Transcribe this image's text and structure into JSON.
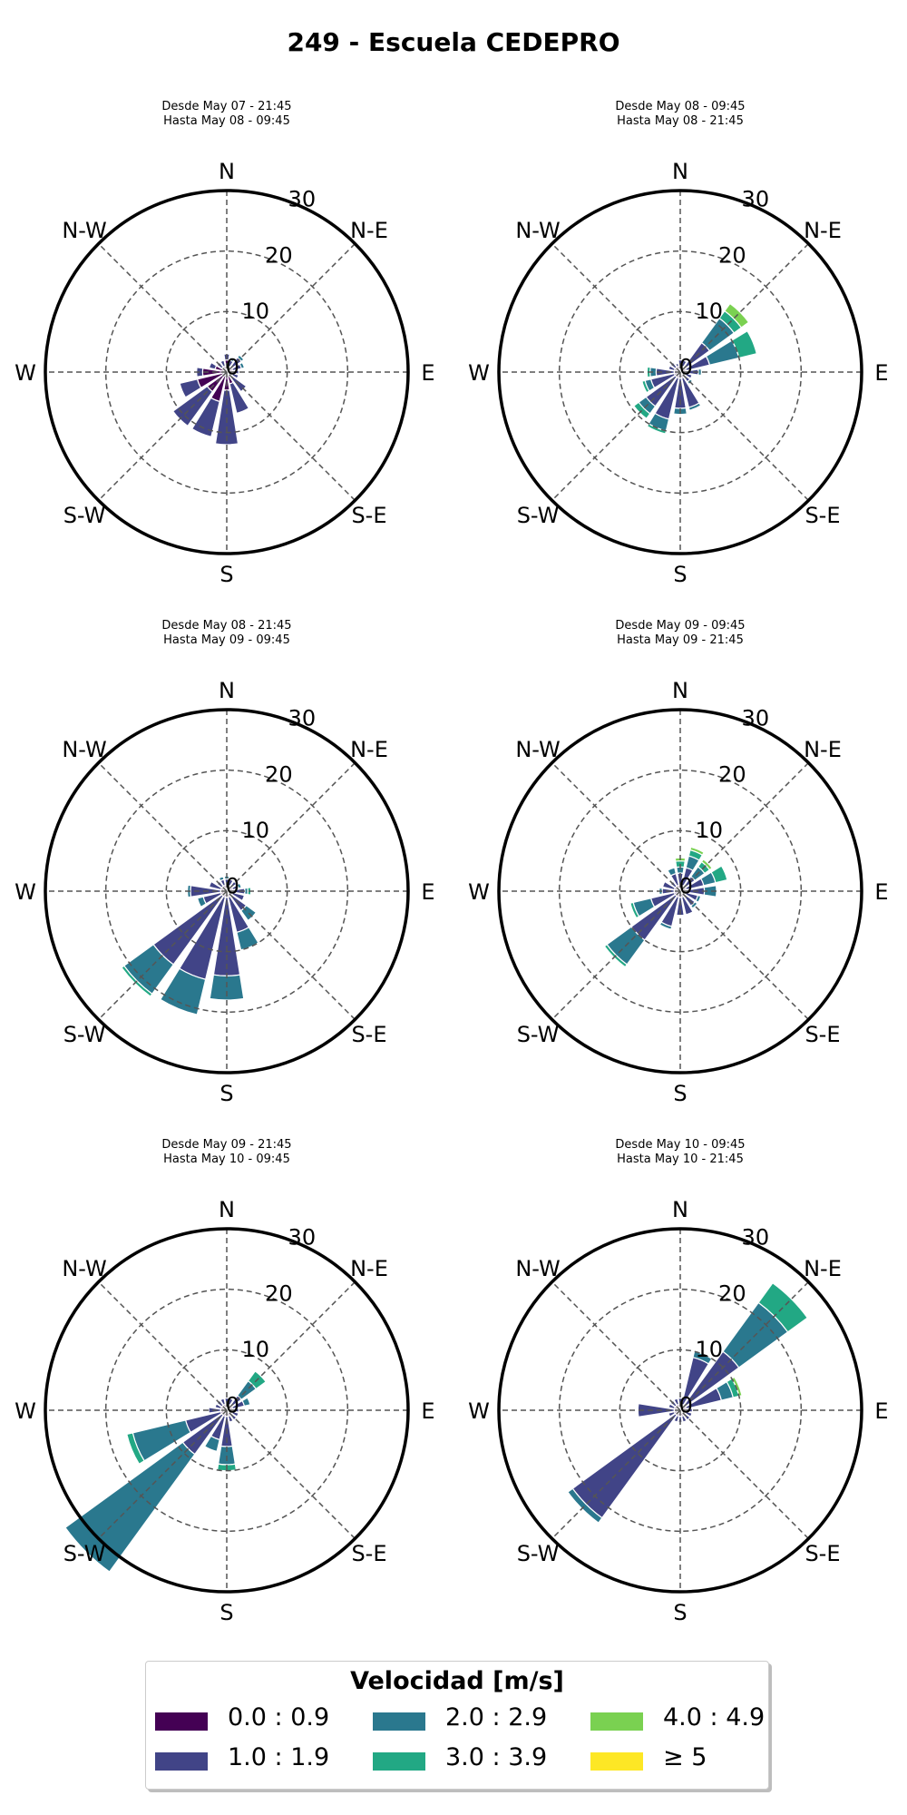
{
  "title": "249 - Escuela CEDEPRO",
  "directions": [
    "N",
    "N-E",
    "E",
    "S-E",
    "S",
    "S-W",
    "W",
    "N-W"
  ],
  "legend": {
    "title": "Velocidad [m/s]",
    "items": [
      {
        "label": "0.0 : 0.9",
        "color": "#440154"
      },
      {
        "label": "2.0 : 2.9",
        "color": "#2a788e"
      },
      {
        "label": "4.0 : 4.9",
        "color": "#7ad151"
      },
      {
        "label": "1.0 : 1.9",
        "color": "#414487"
      },
      {
        "label": "3.0 : 3.9",
        "color": "#22a884"
      },
      {
        "label": "≥ 5",
        "color": "#fde725"
      }
    ]
  },
  "chart_data": [
    {
      "type": "windrose",
      "subtitle_line1": "Desde May 07 - 21:45",
      "subtitle_line2": "Hasta May 08 - 09:45",
      "rmax": 30,
      "rticks": [
        "0",
        "10",
        "20",
        "30"
      ],
      "bins": [
        "0.0 : 0.9",
        "1.0 : 1.9",
        "2.0 : 2.9",
        "3.0 : 3.9",
        "4.0 : 4.9",
        "≥ 5"
      ],
      "sectors": [
        {
          "dir": 0,
          "values": [
            2,
            1,
            0,
            0,
            0,
            0
          ]
        },
        {
          "dir": 22.5,
          "values": [
            1,
            1,
            0.5,
            0,
            0,
            0
          ]
        },
        {
          "dir": 45,
          "values": [
            1,
            2,
            0.5,
            0,
            0,
            0
          ]
        },
        {
          "dir": 67.5,
          "values": [
            1,
            1.5,
            0.5,
            0,
            0,
            0
          ]
        },
        {
          "dir": 90,
          "values": [
            1,
            1,
            0,
            0,
            0,
            0
          ]
        },
        {
          "dir": 112.5,
          "values": [
            1,
            1,
            0,
            0,
            0,
            0
          ]
        },
        {
          "dir": 135,
          "values": [
            1,
            3,
            0,
            0,
            0,
            0
          ]
        },
        {
          "dir": 157.5,
          "values": [
            2,
            5,
            0,
            0,
            0,
            0
          ]
        },
        {
          "dir": 180,
          "values": [
            3,
            9,
            0,
            0,
            0,
            0
          ]
        },
        {
          "dir": 202.5,
          "values": [
            5,
            6,
            0,
            0,
            0,
            0
          ]
        },
        {
          "dir": 225,
          "values": [
            4,
            7,
            0,
            0,
            0,
            0
          ]
        },
        {
          "dir": 247.5,
          "values": [
            5,
            3,
            0,
            0,
            0,
            0
          ]
        },
        {
          "dir": 270,
          "values": [
            4,
            1,
            0,
            0,
            0,
            0
          ]
        },
        {
          "dir": 292.5,
          "values": [
            2,
            1,
            0,
            0,
            0,
            0
          ]
        },
        {
          "dir": 315,
          "values": [
            1,
            1,
            0,
            0,
            0,
            0
          ]
        },
        {
          "dir": 337.5,
          "values": [
            1,
            1,
            0,
            0,
            0,
            0
          ]
        }
      ]
    },
    {
      "type": "windrose",
      "subtitle_line1": "Desde May 08 - 09:45",
      "subtitle_line2": "Hasta May 08 - 21:45",
      "rmax": 30,
      "rticks": [
        "0",
        "10",
        "20",
        "30"
      ],
      "bins": [
        "0.0 : 0.9",
        "1.0 : 1.9",
        "2.0 : 2.9",
        "3.0 : 3.9",
        "4.0 : 4.9",
        "≥ 5"
      ],
      "sectors": [
        {
          "dir": 0,
          "values": [
            1,
            1,
            0,
            0,
            0,
            0
          ]
        },
        {
          "dir": 22.5,
          "values": [
            1,
            1,
            0,
            0,
            0,
            0
          ]
        },
        {
          "dir": 45,
          "values": [
            1,
            5,
            5,
            1.5,
            1.5,
            0
          ]
        },
        {
          "dir": 67.5,
          "values": [
            1,
            4,
            5,
            3,
            0,
            0
          ]
        },
        {
          "dir": 90,
          "values": [
            1,
            2,
            0.5,
            0,
            0,
            0
          ]
        },
        {
          "dir": 112.5,
          "values": [
            1,
            1,
            0,
            0,
            0,
            0
          ]
        },
        {
          "dir": 135,
          "values": [
            1,
            1,
            0.5,
            0,
            0,
            0
          ]
        },
        {
          "dir": 157.5,
          "values": [
            1,
            5,
            0.5,
            0,
            0,
            0
          ]
        },
        {
          "dir": 180,
          "values": [
            1,
            5,
            1,
            0,
            0,
            0
          ]
        },
        {
          "dir": 202.5,
          "values": [
            1,
            7,
            2,
            0.5,
            0,
            0
          ]
        },
        {
          "dir": 225,
          "values": [
            1,
            6,
            1.5,
            1,
            0,
            0
          ]
        },
        {
          "dir": 247.5,
          "values": [
            1,
            4,
            1,
            0.5,
            0,
            0
          ]
        },
        {
          "dir": 270,
          "values": [
            1,
            3,
            1,
            0.5,
            0,
            0
          ]
        },
        {
          "dir": 292.5,
          "values": [
            1,
            1,
            0,
            0,
            0,
            0
          ]
        },
        {
          "dir": 315,
          "values": [
            1,
            1,
            0,
            0,
            0,
            0
          ]
        },
        {
          "dir": 337.5,
          "values": [
            1,
            0.5,
            0,
            0,
            0,
            0
          ]
        }
      ]
    },
    {
      "type": "windrose",
      "subtitle_line1": "Desde May 08 - 21:45",
      "subtitle_line2": "Hasta May 09 - 09:45",
      "rmax": 30,
      "rticks": [
        "0",
        "10",
        "20",
        "30"
      ],
      "bins": [
        "0.0 : 0.9",
        "1.0 : 1.9",
        "2.0 : 2.9",
        "3.0 : 3.9",
        "4.0 : 4.9",
        "≥ 5"
      ],
      "sectors": [
        {
          "dir": 0,
          "values": [
            1,
            1,
            0.5,
            0,
            0,
            0
          ]
        },
        {
          "dir": 22.5,
          "values": [
            1,
            1,
            0,
            0,
            0,
            0
          ]
        },
        {
          "dir": 45,
          "values": [
            1,
            1,
            0,
            0,
            0,
            0
          ]
        },
        {
          "dir": 67.5,
          "values": [
            1,
            1,
            0.5,
            0,
            0,
            0
          ]
        },
        {
          "dir": 90,
          "values": [
            1,
            2,
            0.5,
            0.5,
            0,
            0
          ]
        },
        {
          "dir": 112.5,
          "values": [
            1,
            2,
            0,
            0,
            0,
            0
          ]
        },
        {
          "dir": 135,
          "values": [
            1,
            3,
            2,
            0,
            0,
            0
          ]
        },
        {
          "dir": 157.5,
          "values": [
            1,
            6,
            3,
            0,
            0,
            0
          ]
        },
        {
          "dir": 180,
          "values": [
            1,
            13,
            4,
            0,
            0,
            0
          ]
        },
        {
          "dir": 202.5,
          "values": [
            1,
            14,
            6,
            0,
            0,
            0
          ]
        },
        {
          "dir": 225,
          "values": [
            1,
            14,
            6,
            0.5,
            0,
            0
          ]
        },
        {
          "dir": 247.5,
          "values": [
            1,
            3,
            1,
            0,
            0,
            0
          ]
        },
        {
          "dir": 270,
          "values": [
            1,
            5,
            0.5,
            0,
            0,
            0
          ]
        },
        {
          "dir": 292.5,
          "values": [
            1,
            2,
            0,
            0,
            0,
            0
          ]
        },
        {
          "dir": 315,
          "values": [
            1,
            1,
            0,
            0,
            0,
            0
          ]
        },
        {
          "dir": 337.5,
          "values": [
            1,
            1,
            0.5,
            0,
            0,
            0
          ]
        }
      ]
    },
    {
      "type": "windrose",
      "subtitle_line1": "Desde May 09 - 09:45",
      "subtitle_line2": "Hasta May 09 - 21:45",
      "rmax": 30,
      "rticks": [
        "0",
        "10",
        "20",
        "30"
      ],
      "bins": [
        "0.0 : 0.9",
        "1.0 : 1.9",
        "2.0 : 2.9",
        "3.0 : 3.9",
        "4.0 : 4.9",
        "≥ 5"
      ],
      "sectors": [
        {
          "dir": 0,
          "values": [
            1,
            2,
            1,
            1,
            0.5,
            0
          ]
        },
        {
          "dir": 22.5,
          "values": [
            1,
            3,
            2,
            1,
            0.5,
            0
          ]
        },
        {
          "dir": 45,
          "values": [
            1,
            2,
            2,
            1,
            0.5,
            0
          ]
        },
        {
          "dir": 67.5,
          "values": [
            1,
            3,
            2,
            2,
            0,
            0
          ]
        },
        {
          "dir": 90,
          "values": [
            1,
            3,
            2,
            0,
            0,
            0
          ]
        },
        {
          "dir": 112.5,
          "values": [
            1,
            2,
            0.5,
            0,
            0,
            0
          ]
        },
        {
          "dir": 135,
          "values": [
            1,
            2,
            0.5,
            0,
            0,
            0
          ]
        },
        {
          "dir": 157.5,
          "values": [
            1,
            3,
            0,
            0,
            0,
            0
          ]
        },
        {
          "dir": 180,
          "values": [
            1,
            3,
            0,
            0,
            0,
            0
          ]
        },
        {
          "dir": 202.5,
          "values": [
            1,
            5,
            0.5,
            0,
            0,
            0
          ]
        },
        {
          "dir": 225,
          "values": [
            1,
            9,
            5,
            0.5,
            0,
            0
          ]
        },
        {
          "dir": 247.5,
          "values": [
            1,
            4,
            3,
            0.5,
            0,
            0
          ]
        },
        {
          "dir": 270,
          "values": [
            1,
            2,
            0.5,
            0,
            0,
            0
          ]
        },
        {
          "dir": 292.5,
          "values": [
            1,
            2,
            0,
            0,
            0,
            0
          ]
        },
        {
          "dir": 315,
          "values": [
            1,
            1,
            0,
            0,
            0,
            0
          ]
        },
        {
          "dir": 337.5,
          "values": [
            1,
            2,
            1,
            0,
            0,
            0
          ]
        }
      ]
    },
    {
      "type": "windrose",
      "subtitle_line1": "Desde May 09 - 21:45",
      "subtitle_line2": "Hasta May 10 - 09:45",
      "rmax": 30,
      "rticks": [
        "0",
        "10",
        "20",
        "30"
      ],
      "bins": [
        "0.0 : 0.9",
        "1.0 : 1.9",
        "2.0 : 2.9",
        "3.0 : 3.9",
        "4.0 : 4.9",
        "≥ 5"
      ],
      "sectors": [
        {
          "dir": 0,
          "values": [
            1,
            1,
            0,
            0,
            0,
            0
          ]
        },
        {
          "dir": 22.5,
          "values": [
            1,
            1,
            0,
            0,
            0,
            0
          ]
        },
        {
          "dir": 45,
          "values": [
            1,
            2,
            3,
            2,
            0,
            0
          ]
        },
        {
          "dir": 67.5,
          "values": [
            1,
            2,
            1,
            0,
            0,
            0
          ]
        },
        {
          "dir": 90,
          "values": [
            1,
            1,
            0,
            0,
            0,
            0
          ]
        },
        {
          "dir": 112.5,
          "values": [
            1,
            1,
            0,
            0,
            0,
            0
          ]
        },
        {
          "dir": 135,
          "values": [
            1,
            1,
            0,
            0,
            0,
            0
          ]
        },
        {
          "dir": 157.5,
          "values": [
            1,
            1,
            0,
            0,
            0,
            0
          ]
        },
        {
          "dir": 180,
          "values": [
            1,
            5,
            3,
            1,
            0,
            0
          ]
        },
        {
          "dir": 202.5,
          "values": [
            1,
            4,
            2,
            0,
            0,
            0
          ]
        },
        {
          "dir": 225,
          "values": [
            1,
            8,
            24,
            0,
            0,
            0
          ]
        },
        {
          "dir": 247.5,
          "values": [
            1,
            6,
            9,
            1,
            0,
            0
          ]
        },
        {
          "dir": 270,
          "values": [
            1,
            2,
            0,
            0,
            0,
            0
          ]
        },
        {
          "dir": 292.5,
          "values": [
            1,
            1,
            0,
            0,
            0,
            0
          ]
        },
        {
          "dir": 315,
          "values": [
            1,
            1,
            0,
            0,
            0,
            0
          ]
        },
        {
          "dir": 337.5,
          "values": [
            1,
            1,
            0,
            0,
            0,
            0
          ]
        }
      ]
    },
    {
      "type": "windrose",
      "subtitle_line1": "Desde May 10 - 09:45",
      "subtitle_line2": "Hasta May 10 - 21:45",
      "rmax": 30,
      "rticks": [
        "0",
        "10",
        "20",
        "30"
      ],
      "bins": [
        "0.0 : 0.9",
        "1.0 : 1.9",
        "2.0 : 2.9",
        "3.0 : 3.9",
        "4.0 : 4.9",
        "≥ 5"
      ],
      "sectors": [
        {
          "dir": 0,
          "values": [
            1,
            1,
            0,
            0,
            0,
            0
          ]
        },
        {
          "dir": 22.5,
          "values": [
            1,
            8,
            1,
            0,
            0,
            0
          ]
        },
        {
          "dir": 45,
          "values": [
            1,
            11,
            10,
            4,
            0,
            0
          ]
        },
        {
          "dir": 67.5,
          "values": [
            1,
            6,
            2,
            1,
            0.5,
            0
          ]
        },
        {
          "dir": 90,
          "values": [
            1,
            1,
            0,
            0,
            0,
            0
          ]
        },
        {
          "dir": 112.5,
          "values": [
            1,
            1,
            0,
            0,
            0,
            0
          ]
        },
        {
          "dir": 135,
          "values": [
            1,
            1,
            0,
            0,
            0,
            0
          ]
        },
        {
          "dir": 157.5,
          "values": [
            1,
            1,
            0,
            0,
            0,
            0
          ]
        },
        {
          "dir": 180,
          "values": [
            1,
            1,
            0,
            0,
            0,
            0
          ]
        },
        {
          "dir": 202.5,
          "values": [
            1,
            1,
            0,
            0,
            0,
            0
          ]
        },
        {
          "dir": 225,
          "values": [
            1,
            21,
            1,
            0,
            0,
            0
          ]
        },
        {
          "dir": 247.5,
          "values": [
            1,
            1,
            0,
            0,
            0,
            0
          ]
        },
        {
          "dir": 270,
          "values": [
            1,
            6,
            0,
            0,
            0,
            0
          ]
        },
        {
          "dir": 292.5,
          "values": [
            1,
            1,
            0,
            0,
            0,
            0
          ]
        },
        {
          "dir": 315,
          "values": [
            1,
            1,
            0,
            0,
            0,
            0
          ]
        },
        {
          "dir": 337.5,
          "values": [
            1,
            1,
            0,
            0,
            0,
            0
          ]
        }
      ]
    }
  ]
}
